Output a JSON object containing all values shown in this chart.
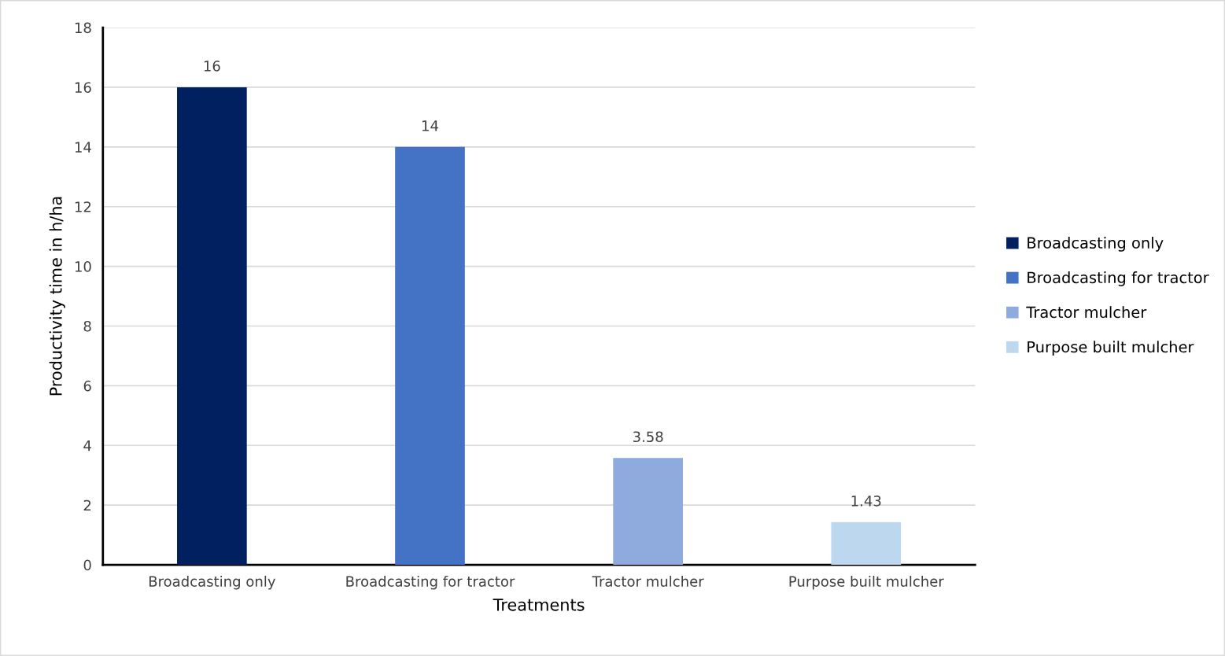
{
  "chart_data": {
    "type": "bar",
    "xlabel": "Treatments",
    "ylabel": "Productivity time in h/ha",
    "categories": [
      "Broadcasting only",
      "Broadcasting for tractor",
      "Tractor mulcher",
      "Purpose built mulcher"
    ],
    "series": [
      {
        "name": "Broadcasting only",
        "color": "#002060",
        "values": [
          16,
          null,
          null,
          null
        ]
      },
      {
        "name": "Broadcasting for tractor",
        "color": "#4472c4",
        "values": [
          null,
          14,
          null,
          null
        ]
      },
      {
        "name": "Tractor mulcher",
        "color": "#8faadc",
        "values": [
          null,
          null,
          3.58,
          null
        ]
      },
      {
        "name": "Purpose built mulcher",
        "color": "#bdd7ee",
        "values": [
          null,
          null,
          null,
          1.43
        ]
      }
    ],
    "ylim": [
      0,
      18
    ],
    "yticks": [
      0,
      2,
      4,
      6,
      8,
      10,
      12,
      14,
      16,
      18
    ],
    "grid": "y",
    "legend": "right",
    "data_labels": true
  }
}
